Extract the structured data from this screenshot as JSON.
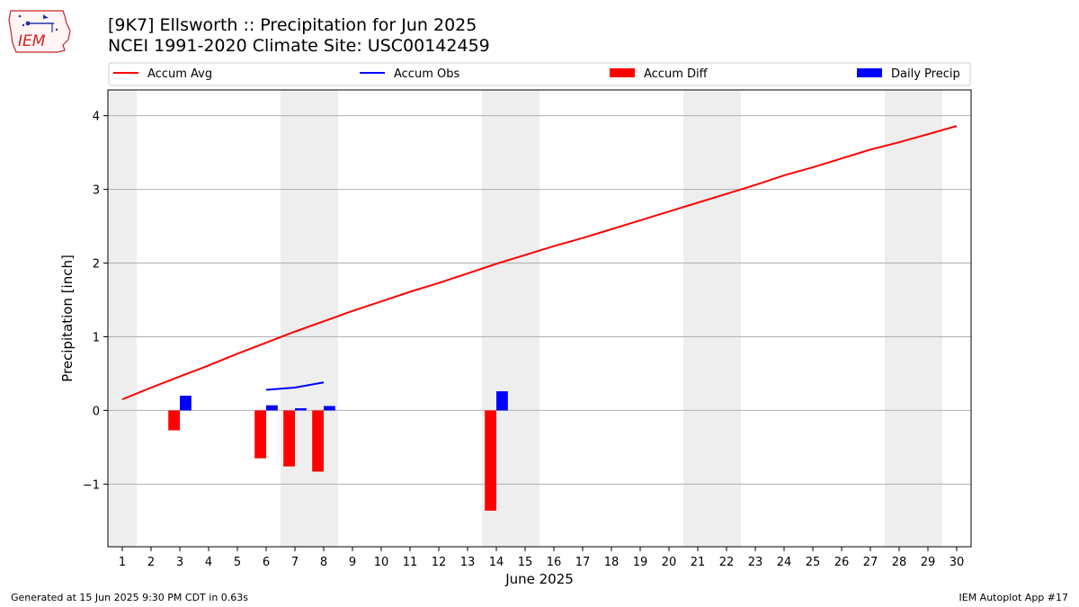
{
  "header": {
    "title_line1": "[9K7] Ellsworth :: Precipitation for Jun 2025",
    "title_line2": "NCEI 1991-2020 Climate Site: USC00142459",
    "logo_text": "IEM"
  },
  "footer": {
    "left": "Generated at 15 Jun 2025 9:30 PM CDT in 0.63s",
    "right": "IEM Autoplot App #17"
  },
  "chart_data": {
    "type": "bar",
    "xlabel": "June 2025",
    "ylabel": "Precipitation [inch]",
    "xlim": [
      0.5,
      30.5
    ],
    "ylim": [
      -1.85,
      4.35
    ],
    "yticks": [
      -1,
      0,
      1,
      2,
      3,
      4
    ],
    "ytick_labels": [
      "−1",
      "0",
      "1",
      "2",
      "3",
      "4"
    ],
    "xticks": [
      1,
      2,
      3,
      4,
      5,
      6,
      7,
      8,
      9,
      10,
      11,
      12,
      13,
      14,
      15,
      16,
      17,
      18,
      19,
      20,
      21,
      22,
      23,
      24,
      25,
      26,
      27,
      28,
      29,
      30
    ],
    "grid": "horizontal",
    "legend_position": "top",
    "weekend_shading_days": [
      1,
      7,
      8,
      14,
      15,
      21,
      22,
      28,
      29
    ],
    "series": [
      {
        "name": "Accum Avg",
        "kind": "line",
        "color": "#ff0000",
        "x": [
          1,
          2,
          3,
          4,
          5,
          6,
          7,
          8,
          9,
          10,
          11,
          12,
          13,
          14,
          15,
          16,
          17,
          18,
          19,
          20,
          21,
          22,
          23,
          24,
          25,
          26,
          27,
          28,
          29,
          30
        ],
        "values": [
          0.15,
          0.31,
          0.46,
          0.61,
          0.77,
          0.92,
          1.07,
          1.21,
          1.35,
          1.48,
          1.61,
          1.73,
          1.86,
          1.99,
          2.11,
          2.23,
          2.34,
          2.46,
          2.58,
          2.7,
          2.82,
          2.94,
          3.06,
          3.19,
          3.3,
          3.42,
          3.54,
          3.64,
          3.75,
          3.86
        ]
      },
      {
        "name": "Accum Obs",
        "kind": "line",
        "color": "#0000ff",
        "x": [
          6,
          7,
          8
        ],
        "values": [
          0.28,
          0.31,
          0.38
        ]
      },
      {
        "name": "Accum Diff",
        "kind": "bar",
        "color": "#ff0000",
        "x": [
          3,
          6,
          7,
          8,
          14
        ],
        "values": [
          -0.27,
          -0.65,
          -0.76,
          -0.83,
          -1.36
        ]
      },
      {
        "name": "Daily Precip",
        "kind": "bar",
        "color": "#0000ff",
        "x": [
          3,
          6,
          7,
          8,
          14
        ],
        "values": [
          0.2,
          0.07,
          0.03,
          0.06,
          0.26
        ]
      }
    ]
  }
}
